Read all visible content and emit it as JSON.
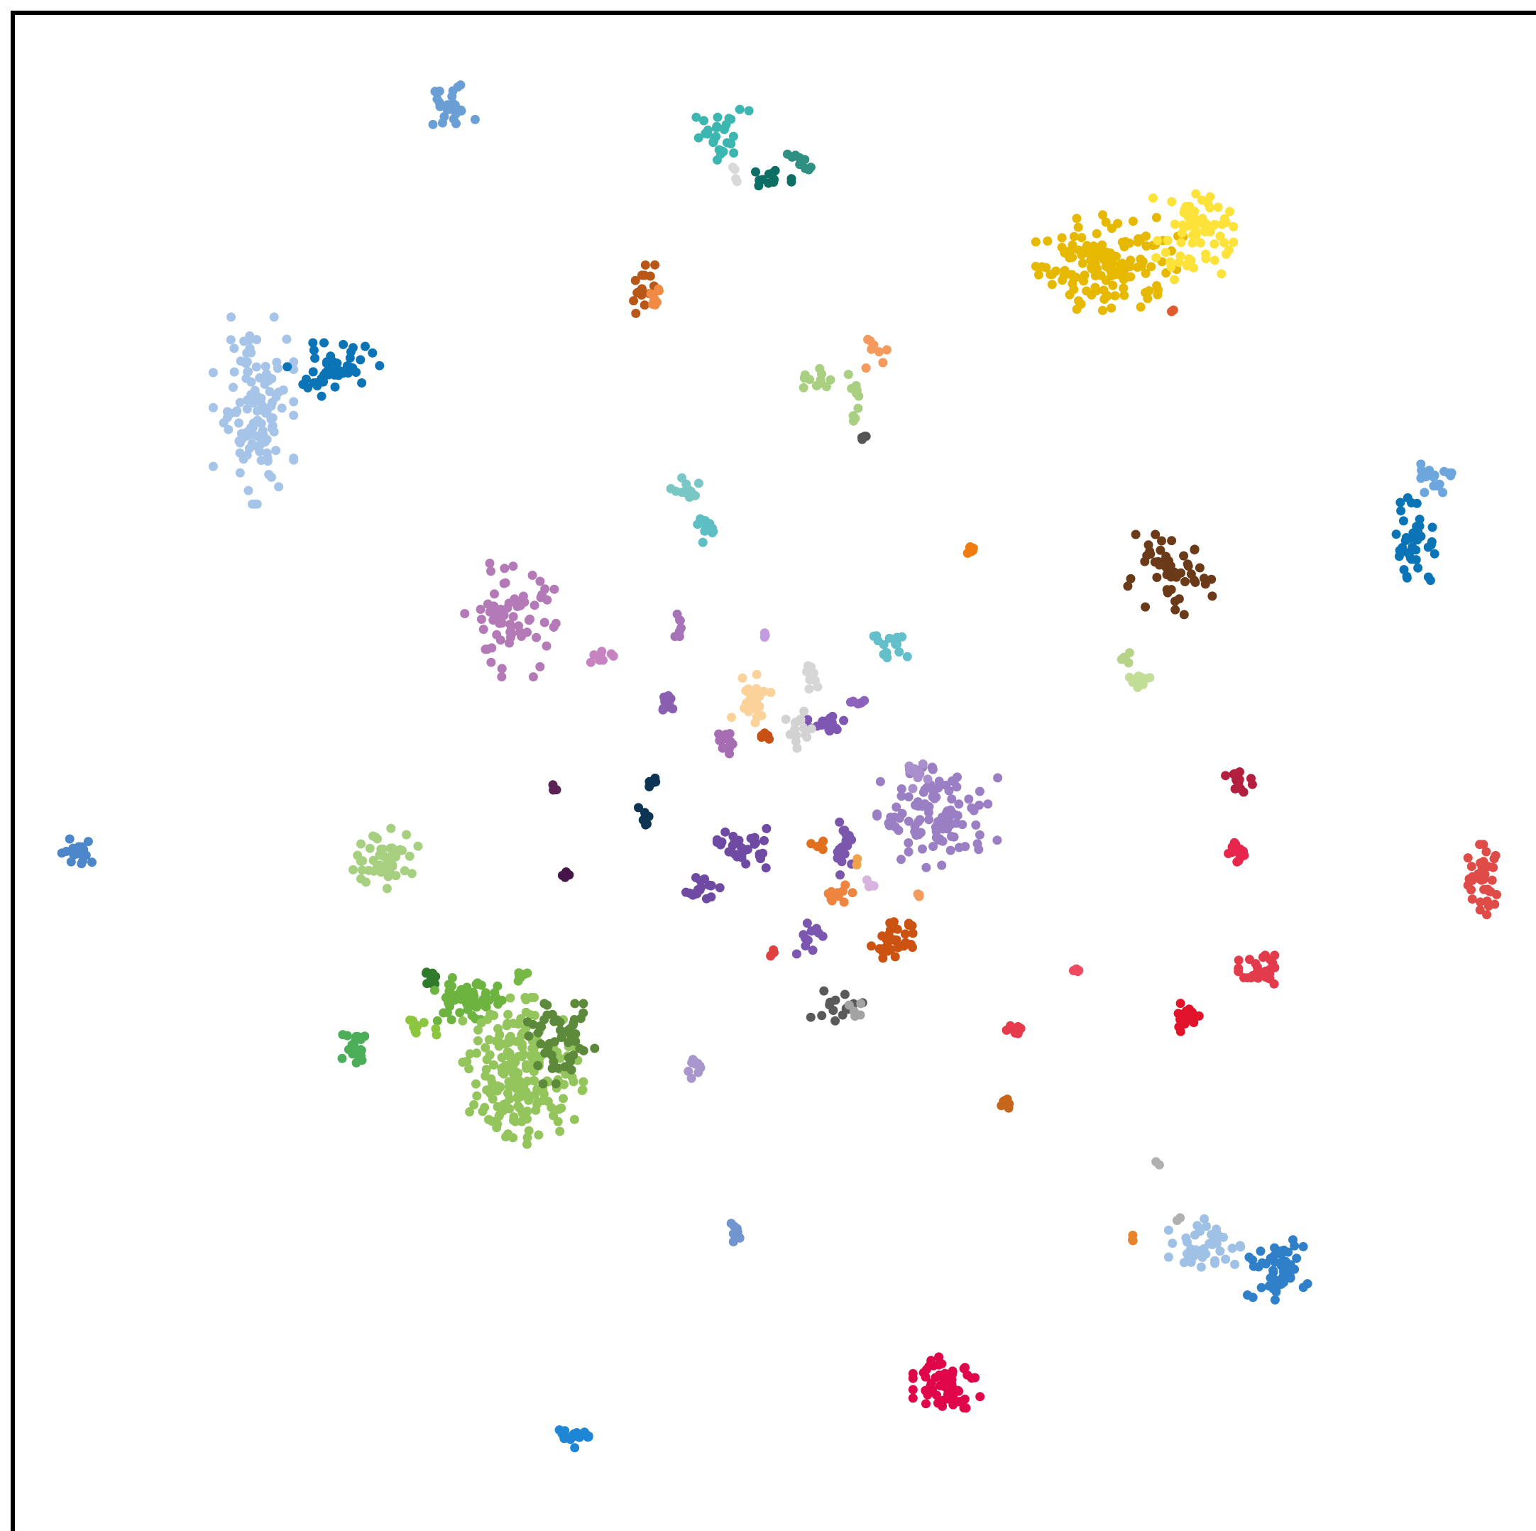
{
  "chart_data": {
    "type": "scatter",
    "title": "",
    "xlabel": "",
    "ylabel": "",
    "xlim": [
      0,
      1
    ],
    "ylim": [
      0,
      1
    ],
    "axes_ticks": false,
    "grid": false,
    "legend": "none",
    "frame_color": "#000000",
    "clusters": [
      {
        "x": 0.286,
        "y": 0.937,
        "sx": 0.008,
        "sy": 0.007,
        "n": 25,
        "color": "#6a9fd6"
      },
      {
        "x": 0.465,
        "y": 0.918,
        "sx": 0.009,
        "sy": 0.009,
        "n": 28,
        "color": "#3cb6b0"
      },
      {
        "x": 0.475,
        "y": 0.893,
        "sx": 0.002,
        "sy": 0.003,
        "n": 4,
        "color": "#d9d9d9"
      },
      {
        "x": 0.498,
        "y": 0.891,
        "sx": 0.006,
        "sy": 0.003,
        "n": 12,
        "color": "#0c6e64"
      },
      {
        "x": 0.516,
        "y": 0.903,
        "sx": 0.004,
        "sy": 0.003,
        "n": 10,
        "color": "#2f8f82"
      },
      {
        "x": 0.72,
        "y": 0.835,
        "sx": 0.022,
        "sy": 0.015,
        "n": 140,
        "color": "#e6b800"
      },
      {
        "x": 0.775,
        "y": 0.855,
        "sx": 0.012,
        "sy": 0.014,
        "n": 70,
        "color": "#fde23a"
      },
      {
        "x": 0.76,
        "y": 0.803,
        "sx": 0.001,
        "sy": 0.001,
        "n": 2,
        "color": "#e05a2f"
      },
      {
        "x": 0.416,
        "y": 0.818,
        "sx": 0.005,
        "sy": 0.008,
        "n": 18,
        "color": "#b85718"
      },
      {
        "x": 0.421,
        "y": 0.812,
        "sx": 0.003,
        "sy": 0.004,
        "n": 8,
        "color": "#f08a45"
      },
      {
        "x": 0.158,
        "y": 0.738,
        "sx": 0.012,
        "sy": 0.028,
        "n": 120,
        "color": "#a6c4e8"
      },
      {
        "x": 0.21,
        "y": 0.765,
        "sx": 0.014,
        "sy": 0.008,
        "n": 55,
        "color": "#0a74b6"
      },
      {
        "x": 0.565,
        "y": 0.777,
        "sx": 0.004,
        "sy": 0.005,
        "n": 8,
        "color": "#f39a5c"
      },
      {
        "x": 0.528,
        "y": 0.758,
        "sx": 0.004,
        "sy": 0.004,
        "n": 12,
        "color": "#a8d080"
      },
      {
        "x": 0.552,
        "y": 0.742,
        "sx": 0.002,
        "sy": 0.009,
        "n": 10,
        "color": "#a8d080"
      },
      {
        "x": 0.56,
        "y": 0.721,
        "sx": 0.002,
        "sy": 0.002,
        "n": 5,
        "color": "#555555"
      },
      {
        "x": 0.935,
        "y": 0.695,
        "sx": 0.007,
        "sy": 0.005,
        "n": 18,
        "color": "#6ca6dc"
      },
      {
        "x": 0.921,
        "y": 0.651,
        "sx": 0.007,
        "sy": 0.014,
        "n": 40,
        "color": "#0a74b6"
      },
      {
        "x": 0.443,
        "y": 0.685,
        "sx": 0.005,
        "sy": 0.004,
        "n": 14,
        "color": "#78c7c4"
      },
      {
        "x": 0.456,
        "y": 0.66,
        "sx": 0.003,
        "sy": 0.004,
        "n": 10,
        "color": "#5dbec4"
      },
      {
        "x": 0.627,
        "y": 0.644,
        "sx": 0.003,
        "sy": 0.002,
        "n": 8,
        "color": "#f07b10"
      },
      {
        "x": 0.758,
        "y": 0.63,
        "sx": 0.014,
        "sy": 0.012,
        "n": 50,
        "color": "#6b3a18"
      },
      {
        "x": 0.327,
        "y": 0.6,
        "sx": 0.014,
        "sy": 0.017,
        "n": 70,
        "color": "#b47ab7"
      },
      {
        "x": 0.438,
        "y": 0.598,
        "sx": 0.002,
        "sy": 0.004,
        "n": 7,
        "color": "#a673b8"
      },
      {
        "x": 0.387,
        "y": 0.575,
        "sx": 0.004,
        "sy": 0.002,
        "n": 8,
        "color": "#c782c2"
      },
      {
        "x": 0.494,
        "y": 0.589,
        "sx": 0.001,
        "sy": 0.002,
        "n": 3,
        "color": "#c29be0"
      },
      {
        "x": 0.576,
        "y": 0.584,
        "sx": 0.006,
        "sy": 0.004,
        "n": 14,
        "color": "#63bfc9"
      },
      {
        "x": 0.73,
        "y": 0.575,
        "sx": 0.002,
        "sy": 0.002,
        "n": 5,
        "color": "#b5d48a"
      },
      {
        "x": 0.742,
        "y": 0.56,
        "sx": 0.004,
        "sy": 0.003,
        "n": 10,
        "color": "#c2de96"
      },
      {
        "x": 0.525,
        "y": 0.562,
        "sx": 0.003,
        "sy": 0.004,
        "n": 10,
        "color": "#d6d6d6"
      },
      {
        "x": 0.485,
        "y": 0.55,
        "sx": 0.006,
        "sy": 0.008,
        "n": 22,
        "color": "#fbd39a"
      },
      {
        "x": 0.43,
        "y": 0.545,
        "sx": 0.003,
        "sy": 0.004,
        "n": 10,
        "color": "#8b5fb0"
      },
      {
        "x": 0.554,
        "y": 0.545,
        "sx": 0.004,
        "sy": 0.002,
        "n": 7,
        "color": "#8d62bd"
      },
      {
        "x": 0.537,
        "y": 0.531,
        "sx": 0.008,
        "sy": 0.004,
        "n": 16,
        "color": "#7e57b2"
      },
      {
        "x": 0.516,
        "y": 0.528,
        "sx": 0.005,
        "sy": 0.007,
        "n": 16,
        "color": "#d2d2d2"
      },
      {
        "x": 0.469,
        "y": 0.52,
        "sx": 0.004,
        "sy": 0.004,
        "n": 12,
        "color": "#a76db2"
      },
      {
        "x": 0.496,
        "y": 0.525,
        "sx": 0.002,
        "sy": 0.002,
        "n": 5,
        "color": "#c85015"
      },
      {
        "x": 0.355,
        "y": 0.49,
        "sx": 0.001,
        "sy": 0.001,
        "n": 3,
        "color": "#5c2255"
      },
      {
        "x": 0.419,
        "y": 0.494,
        "sx": 0.002,
        "sy": 0.003,
        "n": 8,
        "color": "#0d3553"
      },
      {
        "x": 0.415,
        "y": 0.47,
        "sx": 0.002,
        "sy": 0.003,
        "n": 7,
        "color": "#0d3553"
      },
      {
        "x": 0.363,
        "y": 0.433,
        "sx": 0.002,
        "sy": 0.002,
        "n": 5,
        "color": "#45154a"
      },
      {
        "x": 0.043,
        "y": 0.447,
        "sx": 0.005,
        "sy": 0.004,
        "n": 18,
        "color": "#4d86c9"
      },
      {
        "x": 0.245,
        "y": 0.443,
        "sx": 0.01,
        "sy": 0.009,
        "n": 55,
        "color": "#a6cf7f"
      },
      {
        "x": 0.607,
        "y": 0.47,
        "sx": 0.018,
        "sy": 0.015,
        "n": 110,
        "color": "#9b7fc4"
      },
      {
        "x": 0.594,
        "y": 0.5,
        "sx": 0.004,
        "sy": 0.005,
        "n": 10,
        "color": "#a98fcc"
      },
      {
        "x": 0.48,
        "y": 0.45,
        "sx": 0.008,
        "sy": 0.006,
        "n": 30,
        "color": "#6e4aa3"
      },
      {
        "x": 0.451,
        "y": 0.424,
        "sx": 0.006,
        "sy": 0.004,
        "n": 18,
        "color": "#6e4aa3"
      },
      {
        "x": 0.546,
        "y": 0.45,
        "sx": 0.003,
        "sy": 0.009,
        "n": 18,
        "color": "#7a56ad"
      },
      {
        "x": 0.529,
        "y": 0.453,
        "sx": 0.003,
        "sy": 0.002,
        "n": 5,
        "color": "#e0701f"
      },
      {
        "x": 0.554,
        "y": 0.441,
        "sx": 0.001,
        "sy": 0.001,
        "n": 2,
        "color": "#f0a24a"
      },
      {
        "x": 0.541,
        "y": 0.419,
        "sx": 0.005,
        "sy": 0.004,
        "n": 12,
        "color": "#ef8440"
      },
      {
        "x": 0.563,
        "y": 0.425,
        "sx": 0.002,
        "sy": 0.002,
        "n": 4,
        "color": "#d9b3e0"
      },
      {
        "x": 0.596,
        "y": 0.418,
        "sx": 0.001,
        "sy": 0.002,
        "n": 3,
        "color": "#f39a5c"
      },
      {
        "x": 0.579,
        "y": 0.388,
        "sx": 0.007,
        "sy": 0.006,
        "n": 32,
        "color": "#cc5212"
      },
      {
        "x": 0.523,
        "y": 0.39,
        "sx": 0.004,
        "sy": 0.005,
        "n": 12,
        "color": "#7b57b0"
      },
      {
        "x": 0.498,
        "y": 0.379,
        "sx": 0.001,
        "sy": 0.002,
        "n": 4,
        "color": "#e0413f"
      },
      {
        "x": 0.805,
        "y": 0.495,
        "sx": 0.004,
        "sy": 0.004,
        "n": 14,
        "color": "#b31f3f"
      },
      {
        "x": 0.803,
        "y": 0.448,
        "sx": 0.003,
        "sy": 0.004,
        "n": 12,
        "color": "#e8264d"
      },
      {
        "x": 0.965,
        "y": 0.428,
        "sx": 0.007,
        "sy": 0.011,
        "n": 40,
        "color": "#df4b47"
      },
      {
        "x": 0.82,
        "y": 0.366,
        "sx": 0.007,
        "sy": 0.006,
        "n": 28,
        "color": "#e23c4c"
      },
      {
        "x": 0.698,
        "y": 0.368,
        "sx": 0.002,
        "sy": 0.002,
        "n": 5,
        "color": "#ee4b61"
      },
      {
        "x": 0.771,
        "y": 0.339,
        "sx": 0.005,
        "sy": 0.005,
        "n": 18,
        "color": "#e2142c"
      },
      {
        "x": 0.659,
        "y": 0.329,
        "sx": 0.003,
        "sy": 0.003,
        "n": 8,
        "color": "#e63a4d"
      },
      {
        "x": 0.541,
        "y": 0.347,
        "sx": 0.008,
        "sy": 0.005,
        "n": 14,
        "color": "#5a5a5a"
      },
      {
        "x": 0.553,
        "y": 0.343,
        "sx": 0.004,
        "sy": 0.006,
        "n": 5,
        "color": "#a3a3a3"
      },
      {
        "x": 0.274,
        "y": 0.364,
        "sx": 0.003,
        "sy": 0.005,
        "n": 10,
        "color": "#2f7a2b"
      },
      {
        "x": 0.297,
        "y": 0.349,
        "sx": 0.011,
        "sy": 0.007,
        "n": 55,
        "color": "#6db33f"
      },
      {
        "x": 0.335,
        "y": 0.366,
        "sx": 0.003,
        "sy": 0.002,
        "n": 6,
        "color": "#75b843"
      },
      {
        "x": 0.265,
        "y": 0.333,
        "sx": 0.006,
        "sy": 0.003,
        "n": 10,
        "color": "#8cc63f"
      },
      {
        "x": 0.335,
        "y": 0.303,
        "sx": 0.018,
        "sy": 0.022,
        "n": 200,
        "color": "#93c55c"
      },
      {
        "x": 0.36,
        "y": 0.321,
        "sx": 0.01,
        "sy": 0.012,
        "n": 55,
        "color": "#5d8a3a"
      },
      {
        "x": 0.226,
        "y": 0.317,
        "sx": 0.005,
        "sy": 0.006,
        "n": 22,
        "color": "#4cae58"
      },
      {
        "x": 0.448,
        "y": 0.307,
        "sx": 0.003,
        "sy": 0.004,
        "n": 10,
        "color": "#a897cc"
      },
      {
        "x": 0.653,
        "y": 0.28,
        "sx": 0.003,
        "sy": 0.003,
        "n": 8,
        "color": "#c5661b"
      },
      {
        "x": 0.751,
        "y": 0.241,
        "sx": 0.001,
        "sy": 0.001,
        "n": 2,
        "color": "#b0b0b0"
      },
      {
        "x": 0.765,
        "y": 0.206,
        "sx": 0.001,
        "sy": 0.001,
        "n": 2,
        "color": "#b0b0b0"
      },
      {
        "x": 0.736,
        "y": 0.195,
        "sx": 0.001,
        "sy": 0.002,
        "n": 3,
        "color": "#e8852c"
      },
      {
        "x": 0.783,
        "y": 0.188,
        "sx": 0.011,
        "sy": 0.008,
        "n": 42,
        "color": "#9fc1e6"
      },
      {
        "x": 0.828,
        "y": 0.172,
        "sx": 0.01,
        "sy": 0.009,
        "n": 55,
        "color": "#2f80c8"
      },
      {
        "x": 0.475,
        "y": 0.196,
        "sx": 0.003,
        "sy": 0.003,
        "n": 10,
        "color": "#7095cf"
      },
      {
        "x": 0.613,
        "y": 0.099,
        "sx": 0.01,
        "sy": 0.009,
        "n": 60,
        "color": "#e0064a"
      },
      {
        "x": 0.367,
        "y": 0.063,
        "sx": 0.005,
        "sy": 0.004,
        "n": 22,
        "color": "#1f86d6"
      }
    ]
  }
}
